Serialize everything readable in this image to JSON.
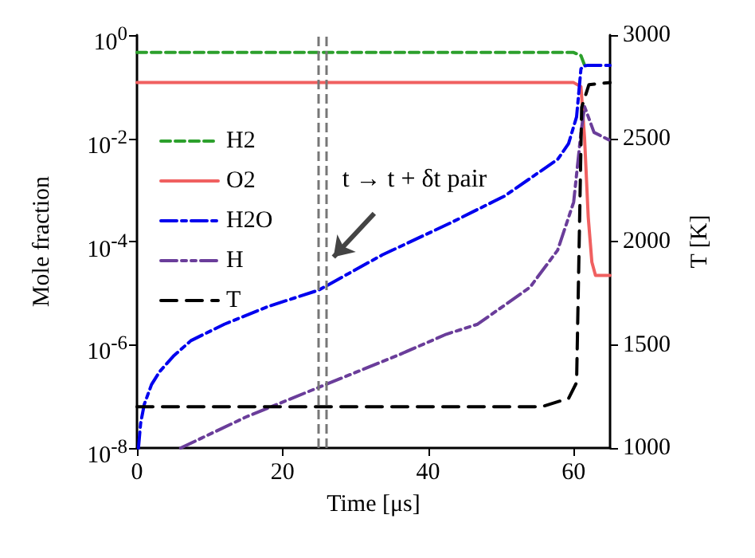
{
  "chart_data": {
    "type": "line",
    "xlabel": "Time [μs]",
    "ylabel": "Mole fraction",
    "y2label": "T [K]",
    "xlim": [
      0,
      65
    ],
    "xticks": [
      0,
      20,
      40,
      60
    ],
    "ylim": [
      1e-08,
      1
    ],
    "yticks": [
      {
        "value": 1e-08,
        "label": "10$^{-8}$"
      },
      {
        "value": 1e-06,
        "label": "10$^{-6}$"
      },
      {
        "value": 0.0001,
        "label": "10$^{-4}$"
      },
      {
        "value": 0.01,
        "label": "10$^{-2}$"
      },
      {
        "value": 1,
        "label": "10$^{0}$"
      }
    ],
    "y2lim": [
      1000,
      3000
    ],
    "y2ticks": [
      1000,
      1500,
      2000,
      2500,
      3000
    ],
    "log": "y",
    "grid": false,
    "legend": "top left",
    "marker": "none",
    "series": [
      {
        "name": "H2",
        "color": "#2ca02c",
        "line_style": "dashed",
        "x": [
          0,
          20,
          40,
          60,
          61,
          61.5
        ],
        "values": [
          0.46,
          0.46,
          0.46,
          0.46,
          0.4,
          0.26
        ]
      },
      {
        "name": "O2",
        "color": "#f06060",
        "line_style": "solid",
        "x": [
          0,
          20,
          40,
          60,
          61,
          61.5,
          62,
          62.5,
          63,
          65
        ],
        "values": [
          0.12,
          0.12,
          0.12,
          0.12,
          0.1,
          0.01,
          0.0003,
          4e-05,
          2.2e-05,
          2.2e-05
        ]
      },
      {
        "name": "H2O",
        "color": "#0000ee",
        "line_style": "dashdot",
        "x": [
          0.2,
          0.5,
          1,
          2,
          3.1,
          5,
          7.4,
          12,
          18,
          25,
          33.7,
          43.1,
          50.5,
          57.8,
          59.3,
          60.4,
          61,
          61.3,
          62,
          65
        ],
        "values": [
          1e-08,
          3e-08,
          7e-08,
          1.7e-07,
          3e-07,
          6e-07,
          1.2e-06,
          2.5e-06,
          5.5e-06,
          1.15e-05,
          5.5e-05,
          0.00023,
          0.00076,
          0.0039,
          0.0079,
          0.026,
          0.22,
          0.25,
          0.26,
          0.26
        ]
      },
      {
        "name": "H",
        "color": "#6a3d9a",
        "line_style": "dashdotdot",
        "x": [
          6,
          15,
          25,
          35.9,
          42.5,
          46.8,
          54,
          57.8,
          60,
          61,
          61.5,
          62.8,
          65
        ],
        "values": [
          1e-08,
          4e-08,
          1.5e-07,
          6.3e-07,
          1.6e-06,
          2.5e-06,
          1.3e-05,
          6.8e-05,
          0.00058,
          0.0126,
          0.041,
          0.013,
          0.0091
        ]
      },
      {
        "name": "T",
        "color": "#000000",
        "line_style": "longdash",
        "axis": "y2",
        "x": [
          0,
          20,
          40,
          55.6,
          59.3,
          60.4,
          60.7,
          61.1,
          62.1,
          65
        ],
        "values": [
          1200,
          1200,
          1200,
          1200,
          1240,
          1317,
          1880,
          2650,
          2760,
          2770
        ]
      }
    ],
    "ref_lines": [
      {
        "axis": "x",
        "value": 25,
        "color": "#777777",
        "line_style": "dashed"
      },
      {
        "axis": "x",
        "value": 26,
        "color": "#777777",
        "line_style": "dashed"
      }
    ],
    "annotations": [
      {
        "text": "t → t + δt pair",
        "x": 27,
        "y": 5e-05
      }
    ]
  }
}
